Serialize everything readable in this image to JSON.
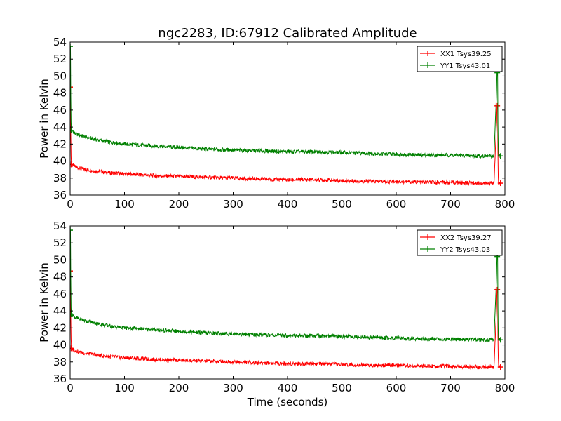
{
  "figure": {
    "title": "ngc2283, ID:67912 Calibrated Amplitude"
  },
  "colors": {
    "xx": "#ff0000",
    "yy": "#008000",
    "axes": "#000000",
    "background": "#ffffff"
  },
  "chart_data": [
    {
      "type": "line",
      "title": "ngc2283, ID:67912 Calibrated Amplitude",
      "xlabel": "",
      "ylabel": "Power in Kelvin",
      "xlim": [
        0,
        800
      ],
      "ylim": [
        36,
        54
      ],
      "xticks": [
        0,
        100,
        200,
        300,
        400,
        500,
        600,
        700,
        800
      ],
      "yticks": [
        36,
        38,
        40,
        42,
        44,
        46,
        48,
        50,
        52,
        54
      ],
      "grid": false,
      "legend_position": "top-right",
      "series": [
        {
          "name": "XX1 Tsys39.25",
          "color": "#ff0000",
          "x": [
            0,
            2,
            5,
            10,
            20,
            30,
            50,
            75,
            100,
            150,
            200,
            250,
            300,
            350,
            400,
            450,
            500,
            550,
            600,
            650,
            700,
            750,
            780,
            786,
            788,
            790,
            792
          ],
          "y": [
            48.7,
            39.6,
            39.5,
            39.3,
            39.1,
            39.0,
            38.8,
            38.6,
            38.5,
            38.3,
            38.2,
            38.1,
            38.0,
            37.9,
            37.8,
            37.8,
            37.7,
            37.6,
            37.6,
            37.5,
            37.5,
            37.4,
            37.4,
            46.5,
            37.4,
            37.4,
            37.4
          ]
        },
        {
          "name": "YY1 Tsys43.01",
          "color": "#008000",
          "x": [
            0,
            2,
            5,
            10,
            20,
            30,
            50,
            75,
            100,
            150,
            200,
            250,
            300,
            350,
            400,
            450,
            500,
            550,
            600,
            650,
            700,
            750,
            780,
            786,
            788,
            790,
            792
          ],
          "y": [
            53.5,
            43.6,
            43.5,
            43.2,
            43.0,
            42.8,
            42.5,
            42.2,
            42.0,
            41.8,
            41.6,
            41.4,
            41.3,
            41.2,
            41.1,
            41.1,
            41.0,
            40.9,
            40.8,
            40.7,
            40.7,
            40.6,
            40.6,
            50.4,
            40.6,
            40.6,
            40.6
          ]
        }
      ]
    },
    {
      "type": "line",
      "title": "",
      "xlabel": "Time (seconds)",
      "ylabel": "Power in Kelvin",
      "xlim": [
        0,
        800
      ],
      "ylim": [
        36,
        54
      ],
      "xticks": [
        0,
        100,
        200,
        300,
        400,
        500,
        600,
        700,
        800
      ],
      "yticks": [
        36,
        38,
        40,
        42,
        44,
        46,
        48,
        50,
        52,
        54
      ],
      "grid": false,
      "legend_position": "top-right",
      "series": [
        {
          "name": "XX2 Tsys39.27",
          "color": "#ff0000",
          "x": [
            0,
            2,
            5,
            10,
            20,
            30,
            50,
            75,
            100,
            150,
            200,
            250,
            300,
            350,
            400,
            450,
            500,
            550,
            600,
            650,
            700,
            750,
            780,
            786,
            788,
            790,
            792
          ],
          "y": [
            48.7,
            39.6,
            39.5,
            39.3,
            39.1,
            39.0,
            38.8,
            38.6,
            38.5,
            38.3,
            38.2,
            38.1,
            38.0,
            37.9,
            37.8,
            37.8,
            37.7,
            37.6,
            37.6,
            37.5,
            37.5,
            37.4,
            37.4,
            46.5,
            37.4,
            37.4,
            37.4
          ]
        },
        {
          "name": "YY2 Tsys43.03",
          "color": "#008000",
          "x": [
            0,
            2,
            5,
            10,
            20,
            30,
            50,
            75,
            100,
            150,
            200,
            250,
            300,
            350,
            400,
            450,
            500,
            550,
            600,
            650,
            700,
            750,
            780,
            786,
            788,
            790,
            792
          ],
          "y": [
            53.5,
            43.6,
            43.5,
            43.2,
            43.0,
            42.8,
            42.5,
            42.2,
            42.0,
            41.8,
            41.6,
            41.4,
            41.3,
            41.2,
            41.1,
            41.1,
            41.0,
            40.9,
            40.8,
            40.7,
            40.7,
            40.6,
            40.6,
            50.4,
            40.6,
            40.6,
            40.6
          ]
        }
      ]
    }
  ]
}
